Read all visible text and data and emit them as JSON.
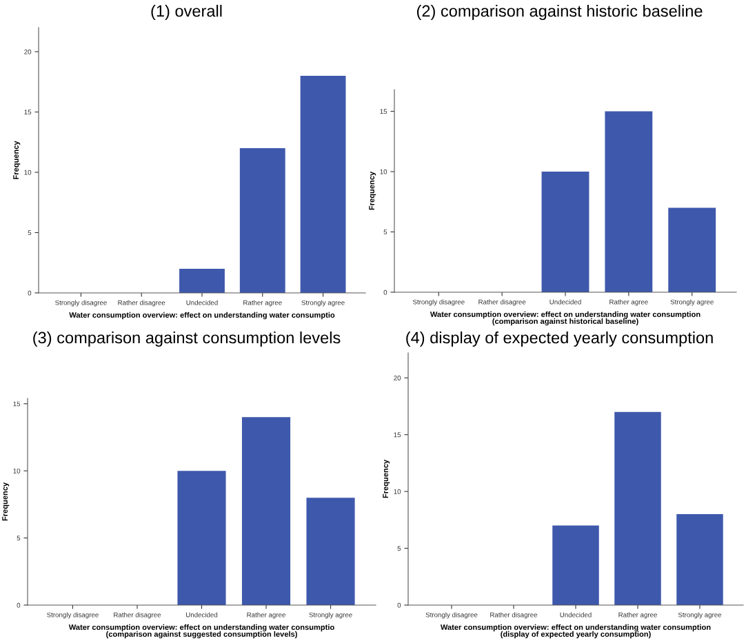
{
  "chart_data": [
    {
      "type": "bar",
      "title": "(1) overall",
      "xlabel": "Water consumption overview: effect on understanding water consumptio",
      "ylabel": "Frequency",
      "categories": [
        "Strongly disagree",
        "Rather disagree",
        "Undecided",
        "Rather agree",
        "Strongly agree"
      ],
      "values": [
        0,
        0,
        2,
        12,
        18
      ],
      "color": "#3e58ac",
      "ylim": [
        0,
        22
      ],
      "yticks": [
        0,
        5,
        10,
        15,
        20
      ],
      "grid": false
    },
    {
      "type": "bar",
      "title": "(2) comparison against historic baseline",
      "xlabel": "Water consumption overview: effect on understanding water consumption\n(comparison against historical baseline)",
      "ylabel": "Frequency",
      "categories": [
        "Strongly disagree",
        "Rather disagree",
        "Undecided",
        "Rather agree",
        "Strongly agree"
      ],
      "values": [
        0,
        0,
        10,
        15,
        7
      ],
      "color": "#3e58ac",
      "ylim": [
        0,
        16.8
      ],
      "yticks": [
        0,
        5,
        10,
        15
      ],
      "grid": false
    },
    {
      "type": "bar",
      "title": "(3) comparison against consumption levels",
      "xlabel": "Water consumption overview: effect on understanding water consumptio\n(comparison against suggested consumption levels)",
      "ylabel": "Frequency",
      "categories": [
        "Strongly disagree",
        "Rather disagree",
        "Undecided",
        "Rather agree",
        "Strongly agree"
      ],
      "values": [
        0,
        0,
        10,
        14,
        8
      ],
      "color": "#3e58ac",
      "ylim": [
        0,
        15.4
      ],
      "yticks": [
        0,
        5,
        10,
        15
      ],
      "grid": false
    },
    {
      "type": "bar",
      "title": "(4) display of expected yearly consumption",
      "xlabel": "Water consumption overview: effect on understanding water consumption\n(display of expected yearly consumption)",
      "ylabel": "Frequency",
      "categories": [
        "Strongly disagree",
        "Rather disagree",
        "Undecided",
        "Rather agree",
        "Strongly agree"
      ],
      "values": [
        0,
        0,
        7,
        17,
        8
      ],
      "color": "#3e58ac",
      "ylim": [
        0,
        22.2
      ],
      "yticks": [
        0,
        5,
        10,
        15,
        20
      ],
      "grid": false
    }
  ]
}
